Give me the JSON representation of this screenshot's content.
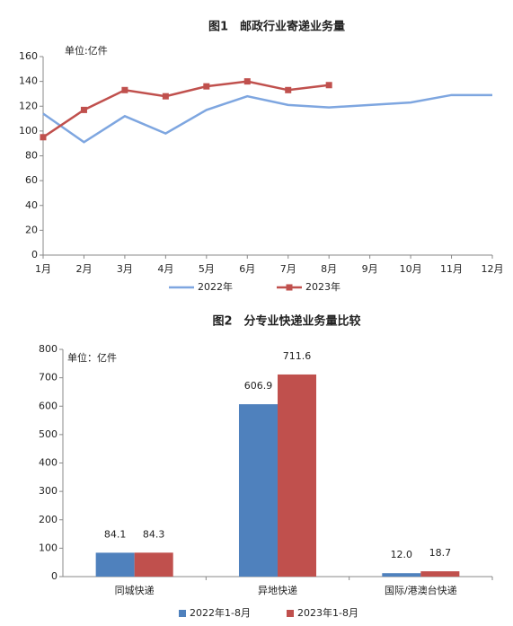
{
  "chart_data": [
    {
      "type": "line",
      "title": "图1　邮政行业寄递业务量",
      "annotation": "单位:亿件",
      "categories": [
        "1月",
        "2月",
        "3月",
        "4月",
        "5月",
        "6月",
        "7月",
        "8月",
        "9月",
        "10月",
        "11月",
        "12月"
      ],
      "series": [
        {
          "name": "2022年",
          "color": "#7ea6e0",
          "marker": false,
          "values": [
            114,
            91,
            112,
            98,
            117,
            128,
            121,
            119,
            121,
            123,
            129,
            129
          ]
        },
        {
          "name": "2023年",
          "color": "#c0504d",
          "marker": true,
          "values": [
            95,
            117,
            133,
            128,
            136,
            140,
            133,
            137,
            null,
            null,
            null,
            null
          ]
        }
      ],
      "ylim": [
        0,
        160
      ],
      "yticks": [
        0,
        20,
        40,
        60,
        80,
        100,
        120,
        140,
        160
      ],
      "legend": "bottom"
    },
    {
      "type": "bar",
      "title": "图2　分专业快递业务量比较",
      "annotation": "单位：亿件",
      "categories": [
        "同城快递",
        "异地快递",
        "国际/港澳台快递"
      ],
      "series": [
        {
          "name": "2022年1-8月",
          "color": "#4f81bd",
          "values": [
            84.1,
            606.9,
            12.0
          ],
          "value_labels": [
            "84.1",
            "606.9",
            "12.0"
          ]
        },
        {
          "name": "2023年1-8月",
          "color": "#c0504d",
          "values": [
            84.3,
            711.6,
            18.7
          ]
        }
      ],
      "ylim": [
        0,
        800
      ],
      "yticks": [
        0,
        100,
        200,
        300,
        400,
        500,
        600,
        700,
        800
      ],
      "legend": "bottom"
    }
  ]
}
